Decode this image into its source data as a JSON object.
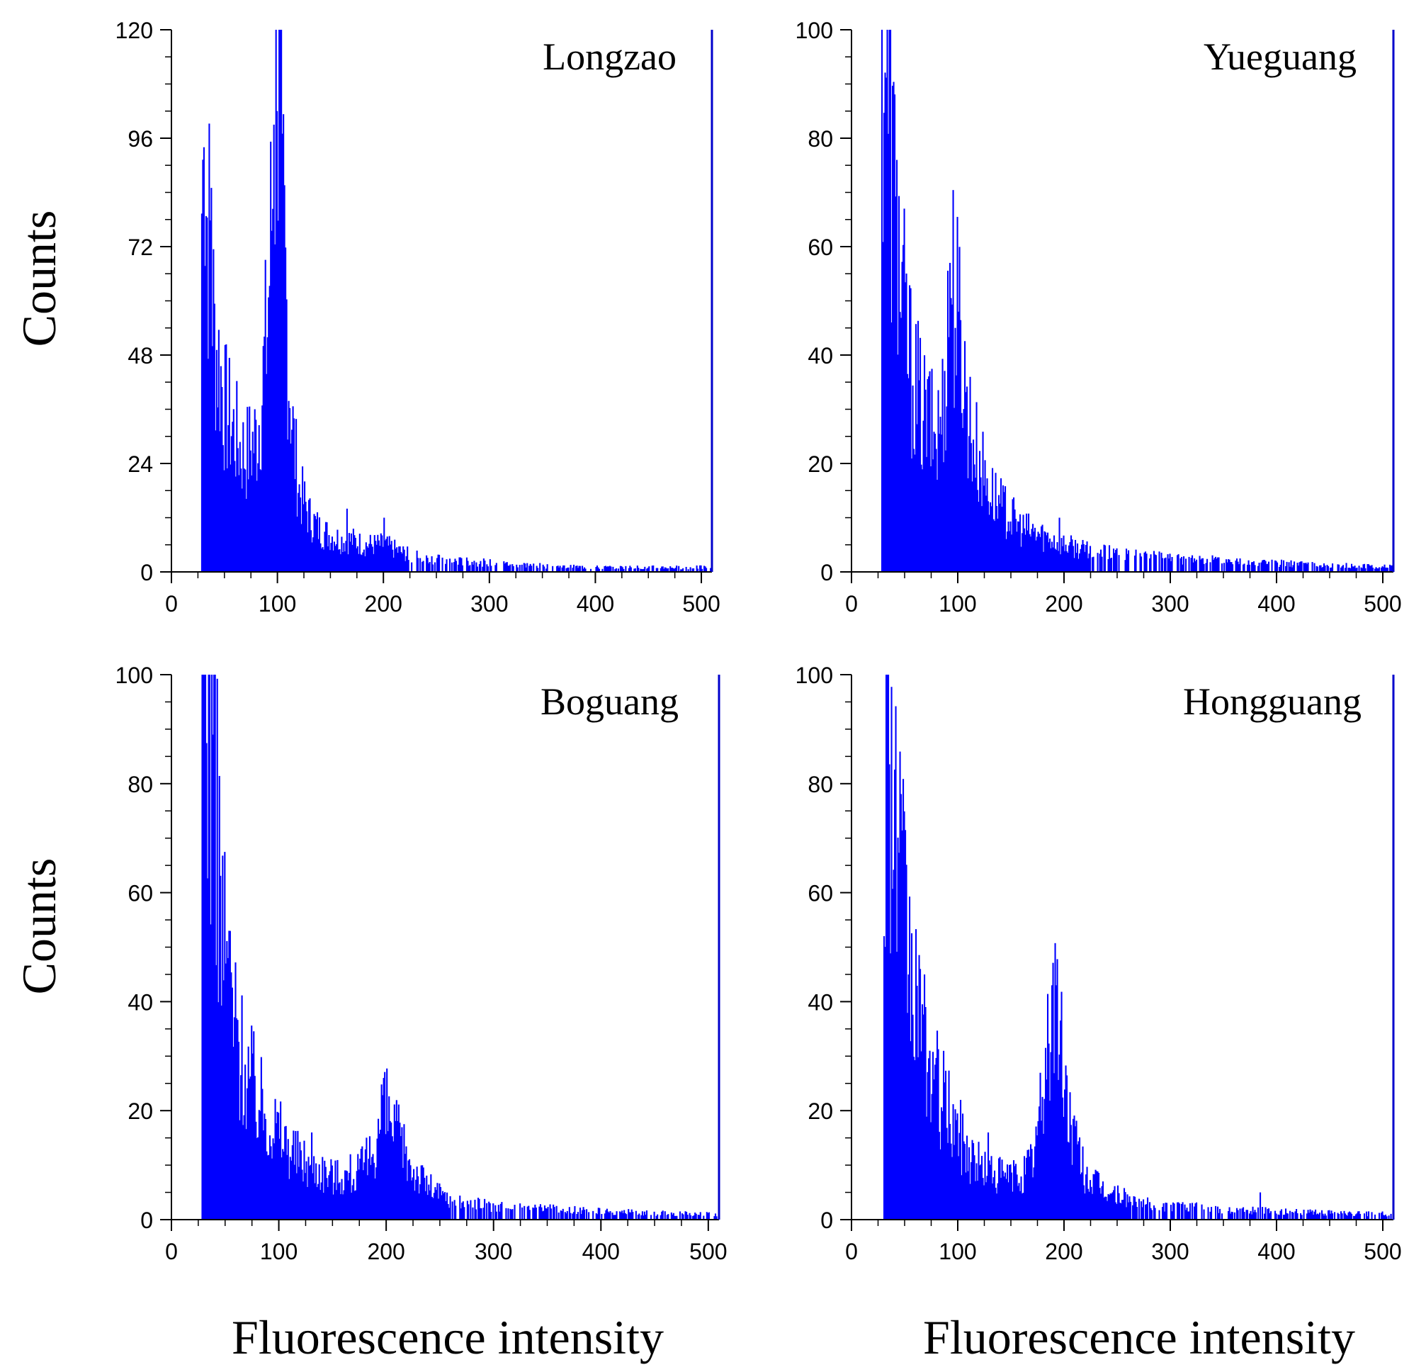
{
  "figure": {
    "ylabel": "Counts",
    "xlabel": "Fluorescence intensity"
  },
  "colors": {
    "bars": "#0000ff",
    "axes": "#000000",
    "frame_right": "#0000cc"
  },
  "chart_data": [
    {
      "type": "bar",
      "title": "Longzao",
      "xlabel": "Fluorescence intensity",
      "ylabel": "Counts",
      "xlim": [
        0,
        510
      ],
      "ylim": [
        0,
        120
      ],
      "xticks": [
        0,
        100,
        200,
        300,
        400,
        500
      ],
      "yticks": [
        0,
        24,
        48,
        72,
        96,
        120
      ],
      "start": 28,
      "anchors": [
        [
          28,
          80
        ],
        [
          30,
          93
        ],
        [
          33,
          78
        ],
        [
          36,
          72
        ],
        [
          40,
          52
        ],
        [
          45,
          45
        ],
        [
          50,
          36
        ],
        [
          55,
          33
        ],
        [
          60,
          30
        ],
        [
          65,
          27
        ],
        [
          70,
          26
        ],
        [
          75,
          28
        ],
        [
          80,
          30
        ],
        [
          85,
          40
        ],
        [
          90,
          55
        ],
        [
          95,
          85
        ],
        [
          98,
          100
        ],
        [
          102,
          96
        ],
        [
          106,
          70
        ],
        [
          110,
          45
        ],
        [
          115,
          28
        ],
        [
          120,
          18
        ],
        [
          130,
          12
        ],
        [
          140,
          9
        ],
        [
          150,
          8
        ],
        [
          160,
          7
        ],
        [
          170,
          7
        ],
        [
          180,
          6
        ],
        [
          190,
          6
        ],
        [
          200,
          6
        ],
        [
          210,
          5
        ],
        [
          220,
          4
        ],
        [
          240,
          3
        ],
        [
          260,
          2.5
        ],
        [
          280,
          2.2
        ],
        [
          300,
          2
        ],
        [
          330,
          1.6
        ],
        [
          360,
          1.2
        ],
        [
          400,
          1
        ],
        [
          450,
          1
        ],
        [
          510,
          1
        ]
      ],
      "spikes": [
        [
          30,
          94
        ],
        [
          99,
          102
        ],
        [
          96,
          99
        ],
        [
          104,
          97
        ],
        [
          165,
          14
        ],
        [
          200,
          12
        ],
        [
          37,
          85
        ]
      ]
    },
    {
      "type": "bar",
      "title": "Yueguang",
      "xlabel": "Fluorescence intensity",
      "ylabel": "Counts",
      "xlim": [
        0,
        510
      ],
      "ylim": [
        0,
        100
      ],
      "xticks": [
        0,
        100,
        200,
        300,
        400,
        500
      ],
      "yticks": [
        0,
        20,
        40,
        60,
        80,
        100
      ],
      "start": 28,
      "anchors": [
        [
          28,
          100
        ],
        [
          32,
          100
        ],
        [
          36,
          80
        ],
        [
          40,
          68
        ],
        [
          45,
          55
        ],
        [
          50,
          45
        ],
        [
          55,
          38
        ],
        [
          60,
          34
        ],
        [
          65,
          30
        ],
        [
          70,
          28
        ],
        [
          75,
          26
        ],
        [
          80,
          25
        ],
        [
          85,
          30
        ],
        [
          90,
          45
        ],
        [
          94,
          55
        ],
        [
          98,
          48
        ],
        [
          102,
          45
        ],
        [
          106,
          35
        ],
        [
          112,
          26
        ],
        [
          120,
          20
        ],
        [
          130,
          15
        ],
        [
          140,
          12
        ],
        [
          150,
          10
        ],
        [
          160,
          8
        ],
        [
          175,
          7
        ],
        [
          190,
          6
        ],
        [
          200,
          5
        ],
        [
          220,
          4
        ],
        [
          240,
          3.5
        ],
        [
          260,
          3
        ],
        [
          300,
          2.5
        ],
        [
          350,
          2
        ],
        [
          400,
          1.6
        ],
        [
          450,
          1.2
        ],
        [
          510,
          1
        ]
      ],
      "spikes": [
        [
          42,
          76
        ],
        [
          92,
          57
        ],
        [
          100,
          48
        ],
        [
          73,
          37
        ],
        [
          195,
          10
        ]
      ]
    },
    {
      "type": "bar",
      "title": "Boguang",
      "xlabel": "Fluorescence intensity",
      "ylabel": "Counts",
      "xlim": [
        0,
        510
      ],
      "ylim": [
        0,
        100
      ],
      "xticks": [
        0,
        100,
        200,
        300,
        400,
        500
      ],
      "yticks": [
        0,
        20,
        40,
        60,
        80,
        100
      ],
      "start": 28,
      "anchors": [
        [
          28,
          100
        ],
        [
          33,
          100
        ],
        [
          37,
          90
        ],
        [
          42,
          75
        ],
        [
          46,
          55
        ],
        [
          50,
          48
        ],
        [
          55,
          40
        ],
        [
          60,
          34
        ],
        [
          65,
          30
        ],
        [
          70,
          27
        ],
        [
          75,
          25
        ],
        [
          80,
          22
        ],
        [
          90,
          19
        ],
        [
          100,
          16
        ],
        [
          110,
          13
        ],
        [
          120,
          11
        ],
        [
          130,
          10
        ],
        [
          140,
          9
        ],
        [
          150,
          8
        ],
        [
          160,
          8
        ],
        [
          170,
          8
        ],
        [
          180,
          10
        ],
        [
          190,
          14
        ],
        [
          196,
          20
        ],
        [
          202,
          19
        ],
        [
          208,
          16
        ],
        [
          215,
          13
        ],
        [
          225,
          9
        ],
        [
          240,
          6
        ],
        [
          255,
          4
        ],
        [
          280,
          3
        ],
        [
          300,
          2.5
        ],
        [
          350,
          2
        ],
        [
          400,
          1.5
        ],
        [
          450,
          1.2
        ],
        [
          510,
          1
        ]
      ],
      "spikes": [
        [
          38,
          89
        ],
        [
          53,
          53
        ],
        [
          197,
          26
        ],
        [
          130,
          16
        ],
        [
          166,
          12
        ]
      ]
    },
    {
      "type": "bar",
      "title": "Hongguang",
      "xlabel": "Fluorescence intensity",
      "ylabel": "Counts",
      "xlim": [
        0,
        510
      ],
      "ylim": [
        0,
        100
      ],
      "xticks": [
        0,
        100,
        200,
        300,
        400,
        500
      ],
      "yticks": [
        0,
        20,
        40,
        60,
        80,
        100
      ],
      "start": 30,
      "anchors": [
        [
          30,
          75
        ],
        [
          34,
          100
        ],
        [
          38,
          77
        ],
        [
          42,
          70
        ],
        [
          46,
          60
        ],
        [
          50,
          52
        ],
        [
          55,
          45
        ],
        [
          60,
          38
        ],
        [
          65,
          33
        ],
        [
          70,
          30
        ],
        [
          75,
          27
        ],
        [
          80,
          24
        ],
        [
          90,
          20
        ],
        [
          100,
          16
        ],
        [
          110,
          12
        ],
        [
          120,
          10
        ],
        [
          130,
          9
        ],
        [
          140,
          8
        ],
        [
          150,
          8
        ],
        [
          160,
          8
        ],
        [
          170,
          11
        ],
        [
          178,
          20
        ],
        [
          184,
          32
        ],
        [
          188,
          40
        ],
        [
          192,
          40
        ],
        [
          196,
          32
        ],
        [
          202,
          22
        ],
        [
          210,
          14
        ],
        [
          220,
          8
        ],
        [
          240,
          5
        ],
        [
          260,
          4
        ],
        [
          280,
          3
        ],
        [
          300,
          2.5
        ],
        [
          350,
          2
        ],
        [
          400,
          1.5
        ],
        [
          450,
          1.2
        ],
        [
          510,
          1
        ]
      ],
      "spikes": [
        [
          34,
          100
        ],
        [
          64,
          46
        ],
        [
          188,
          43
        ],
        [
          192,
          43
        ],
        [
          128,
          16
        ],
        [
          384,
          5
        ]
      ]
    }
  ]
}
